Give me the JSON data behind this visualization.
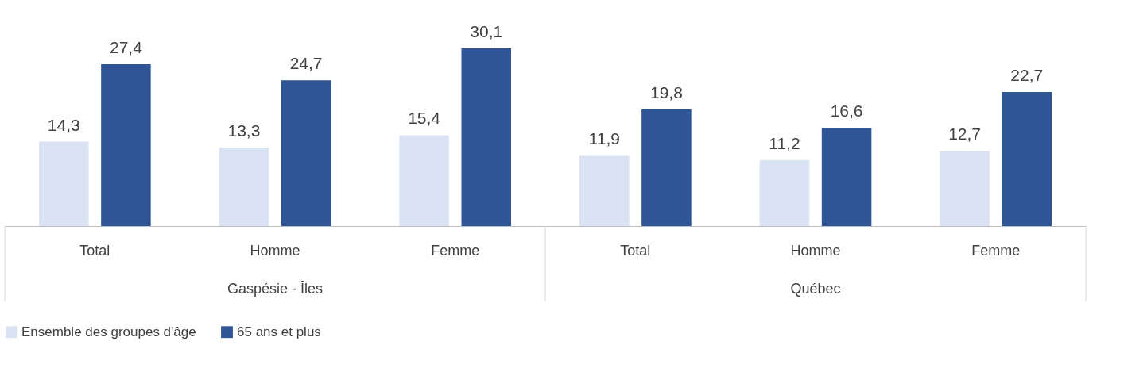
{
  "chart_data": {
    "type": "bar",
    "categories": [
      "Total",
      "Homme",
      "Femme",
      "Total",
      "Homme",
      "Femme"
    ],
    "series": [
      {
        "name": "Ensemble des groupes d'âge",
        "color": "#dae3f3",
        "values": [
          14.3,
          13.3,
          15.4,
          11.9,
          11.2,
          12.7
        ],
        "value_labels": [
          "14,3",
          "13,3",
          "15,4",
          "11,9",
          "11,2",
          "12,7"
        ]
      },
      {
        "name": "65 ans et plus",
        "color": "#2f5597",
        "values": [
          27.4,
          24.7,
          30.1,
          19.8,
          16.6,
          22.7
        ],
        "value_labels": [
          "27,4",
          "24,7",
          "30,1",
          "19,8",
          "16,6",
          "22,7"
        ]
      }
    ],
    "annotations": [
      "Gaspésie - Îles",
      "Québec"
    ],
    "legend": "bottom",
    "grid": false
  }
}
